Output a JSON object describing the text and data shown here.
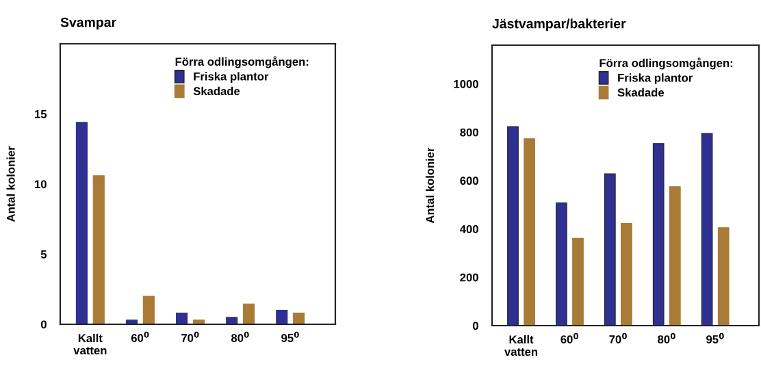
{
  "chart_data": [
    {
      "type": "bar",
      "title": "Svampar",
      "ylabel": "Antal kolonier",
      "legend_title": "Förra odlingsomgången:",
      "categories": [
        "Kallt\nvatten",
        "60$^{0}$",
        "70$^{0}$",
        "80$^{0}$",
        "95$^{0}$"
      ],
      "series": [
        {
          "name": "Friska plantor",
          "color": "#2e3192",
          "values": [
            14.4,
            0.3,
            0.8,
            0.5,
            1.0
          ]
        },
        {
          "name": "Skadade",
          "color": "#a97b37",
          "values": [
            10.6,
            2.0,
            0.3,
            1.45,
            0.8
          ]
        }
      ],
      "ylim": [
        0,
        20
      ],
      "yticks": [
        0,
        5,
        10,
        15
      ],
      "legend": "top right",
      "grid": false
    },
    {
      "type": "bar",
      "title": "Jästvampar/bakterier",
      "ylabel": "Antal kolonier",
      "legend_title": "Förra odlingsomgången:",
      "categories": [
        "Kallt\nvatten",
        "60$^{0}$",
        "70$^{0}$",
        "80$^{0}$",
        "95$^{0}$"
      ],
      "series": [
        {
          "name": "Friska plantor",
          "color": "#2e3192",
          "values": [
            823,
            508,
            628,
            753,
            795
          ]
        },
        {
          "name": "Skadade",
          "color": "#a97b37",
          "values": [
            773,
            361,
            423,
            575,
            405
          ]
        }
      ],
      "ylim": [
        0,
        1160
      ],
      "yticks": [
        0,
        200,
        400,
        600,
        800,
        1000
      ],
      "legend": "top right",
      "grid": false
    }
  ]
}
